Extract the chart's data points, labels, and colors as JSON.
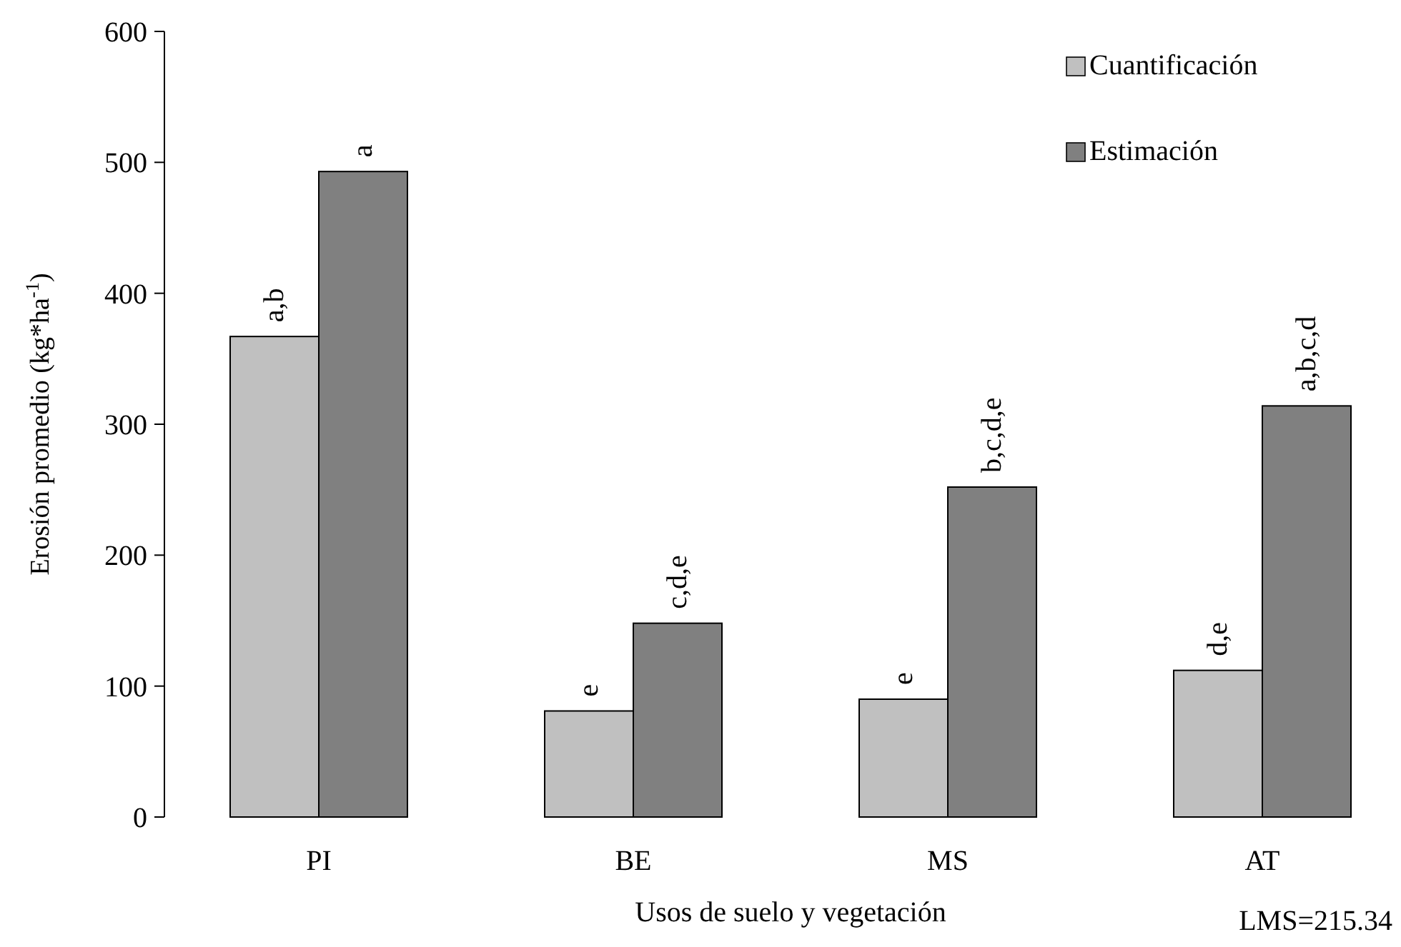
{
  "chart_data": {
    "type": "bar",
    "xlabel": "Usos de suelo y vegetación",
    "ylabel": "Erosión promedio (kg*ha$^{-1}$)",
    "categories": [
      "PI",
      "BE",
      "MS",
      "AT"
    ],
    "series": [
      {
        "name": "Cuantificación",
        "color": "#c0c0c0",
        "values": [
          367,
          81,
          90,
          112
        ]
      },
      {
        "name": "Estimación",
        "color": "#808080",
        "values": [
          493,
          148,
          252,
          314
        ]
      }
    ],
    "ylim": [
      0,
      600
    ],
    "yticks": [
      0,
      100,
      200,
      300,
      400,
      500,
      600
    ],
    "grid": false,
    "legend": "top right",
    "annotations": [
      {
        "text": "a,b",
        "x": "PI",
        "y": 367
      },
      {
        "text": "a",
        "x": "PI",
        "y": 493
      },
      {
        "text": "e",
        "x": "BE",
        "y": 81
      },
      {
        "text": "c,d,e",
        "x": "BE",
        "y": 148
      },
      {
        "text": "e",
        "x": "MS",
        "y": 90
      },
      {
        "text": "b,c,d,e",
        "x": "MS",
        "y": 252
      },
      {
        "text": "d,e",
        "x": "AT",
        "y": 112
      },
      {
        "text": "a,b,c,d",
        "x": "AT",
        "y": 314
      },
      "LMS=215.34"
    ]
  }
}
